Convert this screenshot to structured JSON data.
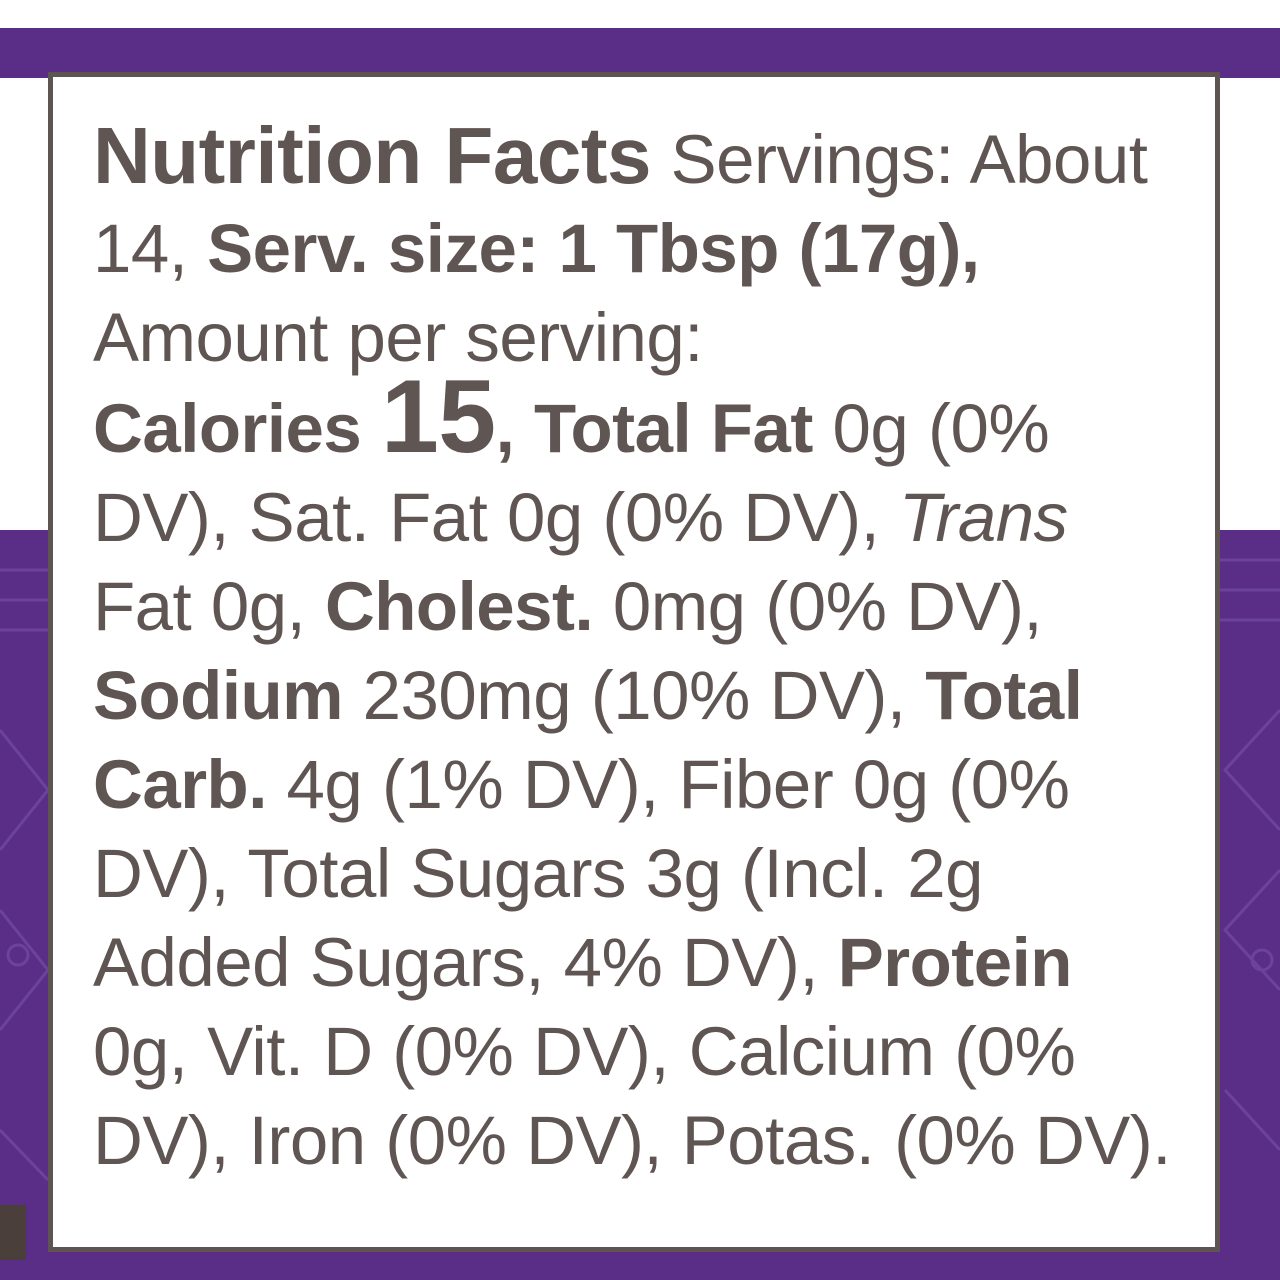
{
  "label": {
    "title": "Nutrition Facts",
    "servings_text": " Servings: About 14, ",
    "serv_size_label": "Serv. size:",
    "serv_size_value": " 1 Tbsp (17g),",
    "amount_text": " Amount per serving: ",
    "calories_label": "Calories",
    "calories_value": "15",
    "calories_suffix": ",",
    "total_fat_label": "Total Fat",
    "total_fat_value": " 0g (0% DV), Sat. Fat 0g (0% DV), ",
    "trans_label": "Trans",
    "trans_value": " Fat 0g, ",
    "cholest_label": "Cholest.",
    "cholest_value": " 0mg (0% DV), ",
    "sodium_label": "Sodium",
    "sodium_value": " 230mg (10% DV), ",
    "carb_label": "Total Carb.",
    "carb_value": " 4g (1% DV), Fiber 0g (0% DV), Total Sugars 3g (Incl. 2g Added Sugars, 4% DV), ",
    "protein_label": "Protein",
    "protein_value": " 0g, Vit. D (0% DV), Calcium (0% DV), Iron (0% DV), Potas. (0% DV)."
  },
  "colors": {
    "brand_purple": "#5a2d87",
    "text_gray": "#5f5553",
    "border_gray": "#5e5552"
  }
}
